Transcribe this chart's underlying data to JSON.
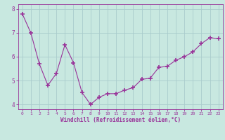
{
  "x": [
    0,
    1,
    2,
    3,
    4,
    5,
    6,
    7,
    8,
    9,
    10,
    11,
    12,
    13,
    14,
    15,
    16,
    17,
    18,
    19,
    20,
    21,
    22,
    23
  ],
  "y": [
    7.8,
    7.0,
    5.7,
    4.8,
    5.3,
    6.5,
    5.75,
    4.5,
    4.0,
    4.3,
    4.45,
    4.45,
    4.6,
    4.7,
    5.05,
    5.1,
    5.55,
    5.6,
    5.85,
    6.0,
    6.2,
    6.55,
    6.8,
    6.75
  ],
  "line_color": "#993399",
  "marker": "+",
  "background_color": "#c8e8e0",
  "grid_color": "#aacccc",
  "xlabel": "Windchill (Refroidissement éolien,°C)",
  "xlabel_color": "#993399",
  "tick_color": "#993399",
  "ylim": [
    3.8,
    8.2
  ],
  "xlim": [
    -0.5,
    23.5
  ],
  "yticks": [
    4,
    5,
    6,
    7,
    8
  ],
  "xticks": [
    0,
    1,
    2,
    3,
    4,
    5,
    6,
    7,
    8,
    9,
    10,
    11,
    12,
    13,
    14,
    15,
    16,
    17,
    18,
    19,
    20,
    21,
    22,
    23
  ],
  "font_family": "monospace",
  "figsize": [
    3.2,
    2.0
  ],
  "dpi": 100
}
